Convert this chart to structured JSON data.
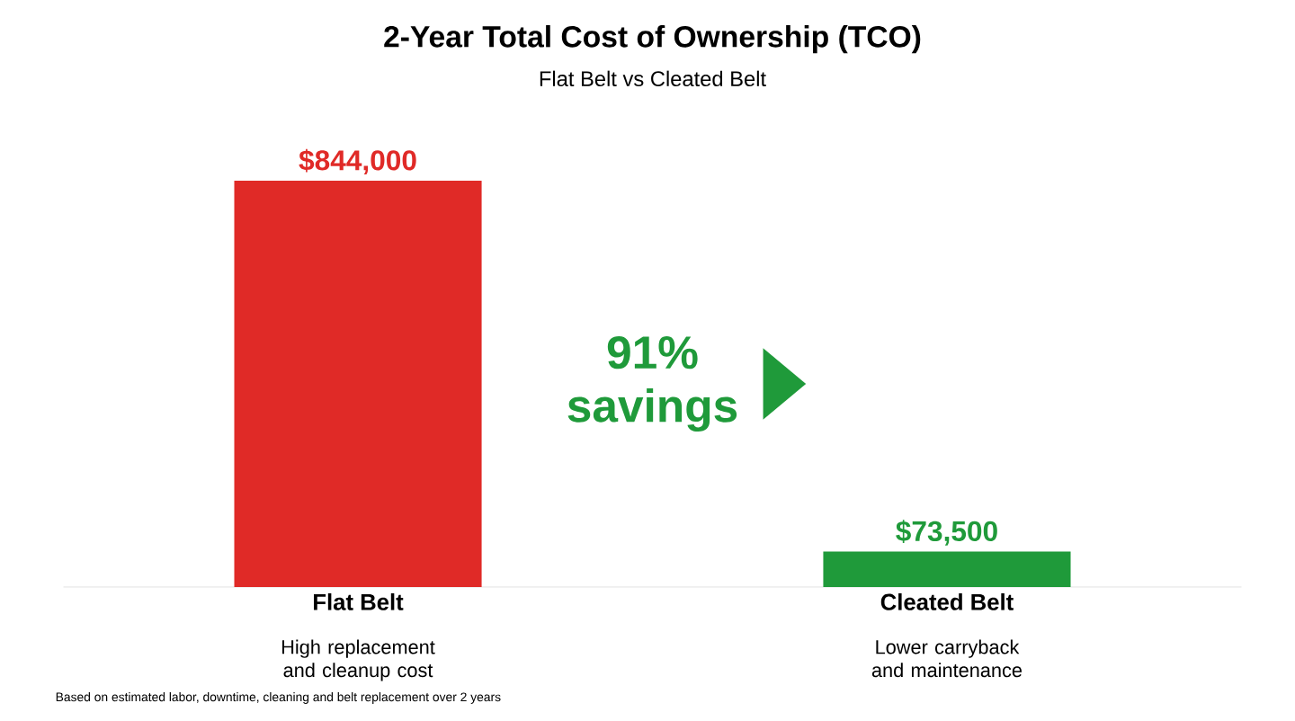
{
  "chart_data": {
    "type": "bar",
    "title": "2-Year Total Cost of Ownership (TCO)",
    "subtitle": "Flat Belt vs Cleated Belt",
    "categories": [
      "Flat Belt",
      "Cleated Belt"
    ],
    "values": [
      844000,
      73500
    ],
    "colors": [
      "#e02a27",
      "#1f9a3a"
    ],
    "value_labels": [
      "$844,000",
      "$73,500"
    ],
    "tick_labels": "x",
    "annotations": [
      "91% savings",
      "High replacement and cleanup cost",
      "Lower carryback and maintenance",
      "Based on estimated labor, downtime, cleaning and belt replacement over 2 years"
    ]
  }
}
